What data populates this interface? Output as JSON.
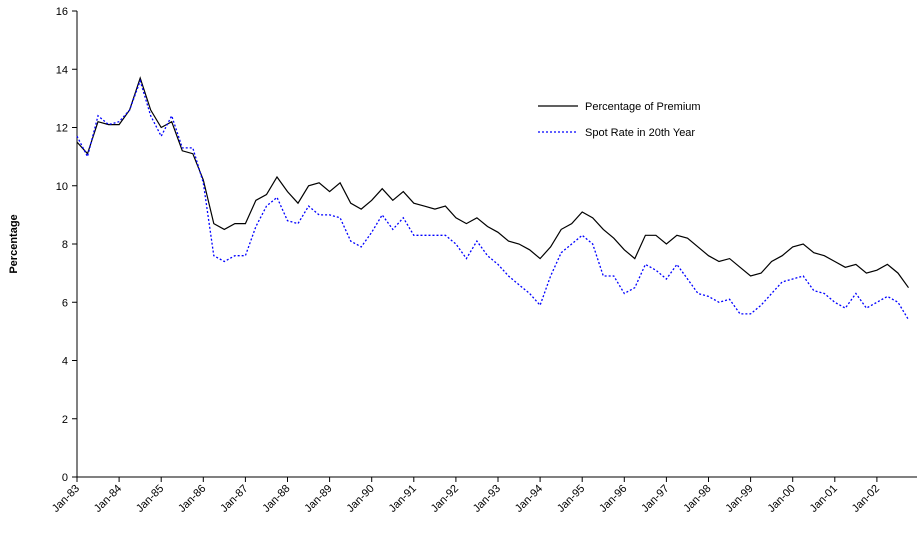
{
  "chart_data": {
    "type": "line",
    "y_label": "Percentage",
    "categories": [
      "Jan-83",
      null,
      null,
      null,
      "Jan-84",
      null,
      null,
      null,
      "Jan-85",
      null,
      null,
      null,
      "Jan-86",
      null,
      null,
      null,
      "Jan-87",
      null,
      null,
      null,
      "Jan-88",
      null,
      null,
      null,
      "Jan-89",
      null,
      null,
      null,
      "Jan-90",
      null,
      null,
      null,
      "Jan-91",
      null,
      null,
      null,
      "Jan-92",
      null,
      null,
      null,
      "Jan-93",
      null,
      null,
      null,
      "Jan-94",
      null,
      null,
      null,
      "Jan-95",
      null,
      null,
      null,
      "Jan-96",
      null,
      null,
      null,
      "Jan-97",
      null,
      null,
      null,
      "Jan-98",
      null,
      null,
      null,
      "Jan-99",
      null,
      null,
      null,
      "Jan-00",
      null,
      null,
      null,
      "Jan-01",
      null,
      null,
      null,
      "Jan-02",
      null,
      null,
      null
    ],
    "series": [
      {
        "name": "Percentage of Premium",
        "color": "#000000",
        "dash": false,
        "values": [
          11.5,
          11.1,
          12.2,
          12.1,
          12.1,
          12.6,
          13.7,
          12.6,
          12.0,
          12.2,
          11.2,
          11.1,
          10.2,
          8.7,
          8.5,
          8.7,
          8.7,
          9.5,
          9.7,
          10.3,
          9.8,
          9.4,
          10.0,
          10.1,
          9.8,
          10.1,
          9.4,
          9.2,
          9.5,
          9.9,
          9.5,
          9.8,
          9.4,
          9.3,
          9.2,
          9.3,
          8.9,
          8.7,
          8.9,
          8.6,
          8.4,
          8.1,
          8.0,
          7.8,
          7.5,
          7.9,
          8.5,
          8.7,
          9.1,
          8.9,
          8.5,
          8.2,
          7.8,
          7.5,
          8.3,
          8.3,
          8.0,
          8.3,
          8.2,
          7.9,
          7.6,
          7.4,
          7.5,
          7.2,
          6.9,
          7.0,
          7.4,
          7.6,
          7.9,
          8.0,
          7.7,
          7.6,
          7.4,
          7.2,
          7.3,
          7.0,
          7.1,
          7.3,
          7.0,
          6.5
        ]
      },
      {
        "name": "Spot Rate in 20th Year",
        "color": "#0000ff",
        "dash": true,
        "values": [
          11.7,
          11.0,
          12.4,
          12.1,
          12.2,
          12.6,
          13.6,
          12.4,
          11.7,
          12.4,
          11.3,
          11.3,
          10.1,
          7.6,
          7.4,
          7.6,
          7.6,
          8.6,
          9.3,
          9.6,
          8.8,
          8.7,
          9.3,
          9.0,
          9.0,
          8.9,
          8.1,
          7.9,
          8.4,
          9.0,
          8.5,
          8.9,
          8.3,
          8.3,
          8.3,
          8.3,
          8.0,
          7.5,
          8.1,
          7.6,
          7.3,
          6.9,
          6.6,
          6.3,
          5.9,
          6.9,
          7.7,
          8.0,
          8.3,
          8.0,
          6.9,
          6.9,
          6.3,
          6.5,
          7.3,
          7.1,
          6.8,
          7.3,
          6.8,
          6.3,
          6.2,
          6.0,
          6.1,
          5.6,
          5.6,
          5.9,
          6.3,
          6.7,
          6.8,
          6.9,
          6.4,
          6.3,
          6.0,
          5.8,
          6.3,
          5.8,
          6.0,
          6.2,
          6.0,
          5.4
        ]
      }
    ],
    "ylim": [
      0,
      16
    ],
    "yticks": [
      0,
      2,
      4,
      6,
      8,
      10,
      12,
      14,
      16
    ],
    "grid": false,
    "legend": "upper-right"
  }
}
